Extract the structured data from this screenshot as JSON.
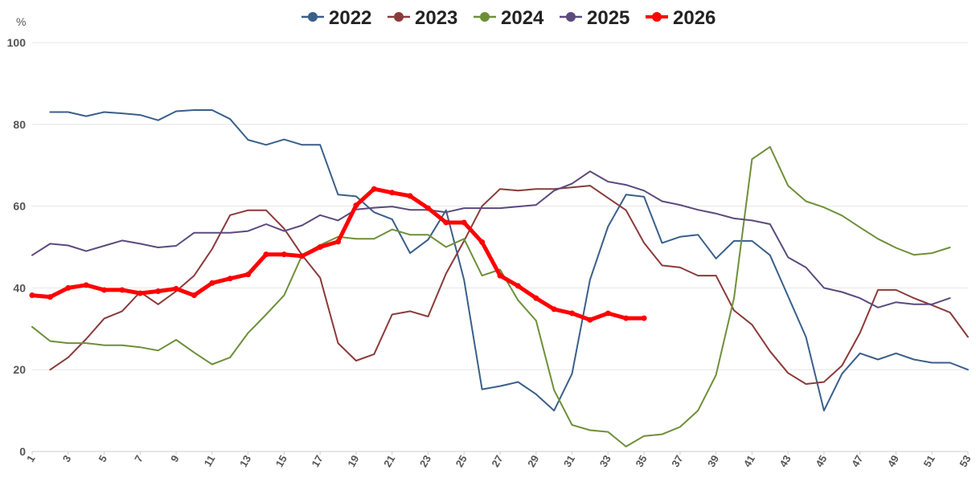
{
  "chart_data": {
    "type": "line",
    "y_unit": "%",
    "ylim": [
      0,
      100
    ],
    "y_ticks": [
      0,
      20,
      40,
      60,
      80,
      100
    ],
    "xlim": [
      1,
      53
    ],
    "x_ticks": [
      1,
      3,
      5,
      7,
      9,
      11,
      13,
      15,
      17,
      19,
      21,
      23,
      25,
      27,
      29,
      31,
      33,
      35,
      37,
      39,
      41,
      43,
      45,
      47,
      49,
      51,
      53
    ],
    "grid": "horizontal",
    "legend_position": "top-center",
    "series": [
      {
        "name": "2022",
        "color": "#3a5f8a",
        "x": [
          2,
          3,
          4,
          5,
          6,
          7,
          8,
          9,
          10,
          11,
          12,
          13,
          14,
          15,
          16,
          17,
          18,
          19,
          20,
          21,
          22,
          23,
          24,
          25,
          26,
          27,
          28,
          29,
          30,
          31,
          32,
          33,
          34,
          35,
          36,
          37,
          38,
          39,
          40,
          41,
          42,
          43,
          44,
          45,
          46,
          47,
          48,
          49,
          50,
          51,
          52,
          53
        ],
        "values": [
          83,
          83,
          82,
          83,
          82.7,
          82.3,
          81,
          83.2,
          83.5,
          83.5,
          81.3,
          76.2,
          75,
          76.3,
          75,
          75,
          62.8,
          62.4,
          58.5,
          56.8,
          48.5,
          51.8,
          59,
          42,
          15.2,
          16,
          17,
          14,
          10,
          19,
          42,
          55,
          62.8,
          62.3,
          51,
          52.5,
          53,
          47.2,
          51.5,
          51.5,
          48,
          38,
          28,
          10,
          19,
          24,
          22.5,
          24,
          22.5,
          21.7,
          21.7,
          20
        ]
      },
      {
        "name": "2023",
        "color": "#8b3a3a",
        "x": [
          2,
          3,
          4,
          5,
          6,
          7,
          8,
          9,
          10,
          11,
          12,
          13,
          14,
          15,
          16,
          17,
          18,
          19,
          20,
          21,
          22,
          23,
          24,
          25,
          26,
          27,
          28,
          29,
          30,
          31,
          32,
          33,
          34,
          35,
          36,
          37,
          38,
          39,
          40,
          41,
          42,
          43,
          44,
          45,
          46,
          47,
          48,
          49,
          50,
          51,
          52,
          53
        ],
        "values": [
          20,
          23,
          27.5,
          32.5,
          34.3,
          39,
          36,
          39.2,
          43,
          49.5,
          57.8,
          59,
          59,
          54.5,
          48,
          42.5,
          26.5,
          22.2,
          23.8,
          33.5,
          34.3,
          33,
          43.5,
          51.5,
          60,
          64.2,
          63.8,
          64.2,
          64.2,
          64.6,
          65,
          62,
          59,
          51,
          45.5,
          45,
          43,
          43,
          34.5,
          31,
          24.5,
          19.2,
          16.5,
          17,
          21,
          29,
          39.5,
          39.5,
          37.5,
          35.8,
          34,
          28
        ]
      },
      {
        "name": "2024",
        "color": "#6e8f3a",
        "x": [
          1,
          2,
          3,
          4,
          5,
          6,
          7,
          8,
          9,
          10,
          11,
          12,
          13,
          14,
          15,
          16,
          17,
          18,
          19,
          20,
          21,
          22,
          23,
          24,
          25,
          26,
          27,
          28,
          29,
          30,
          31,
          32,
          33,
          34,
          35,
          36,
          37,
          38,
          39,
          40,
          41,
          42,
          43,
          44,
          45,
          46,
          47,
          48,
          49,
          50,
          51,
          52
        ],
        "values": [
          30.5,
          27,
          26.5,
          26.5,
          26,
          26,
          25.5,
          24.7,
          27.3,
          24.2,
          21.3,
          23,
          29,
          33.5,
          38.2,
          48,
          50.5,
          52.5,
          52,
          52,
          54.3,
          53,
          53,
          50,
          52,
          43,
          44.5,
          37,
          32,
          15,
          6.5,
          5.2,
          4.8,
          1.2,
          3.8,
          4.2,
          6,
          10,
          18.7,
          37.5,
          71.5,
          74.5,
          65,
          61.2,
          59.7,
          57.7,
          54.8,
          52,
          49.8,
          48.1,
          48.5,
          49.9
        ]
      },
      {
        "name": "2025",
        "color": "#5b4a7d",
        "x": [
          1,
          2,
          3,
          4,
          5,
          6,
          7,
          8,
          9,
          10,
          11,
          12,
          13,
          14,
          15,
          16,
          17,
          18,
          19,
          20,
          21,
          22,
          23,
          24,
          25,
          26,
          27,
          28,
          29,
          30,
          31,
          32,
          33,
          34,
          35,
          36,
          37,
          38,
          39,
          40,
          41,
          42,
          43,
          44,
          45,
          46,
          47,
          48,
          49,
          50,
          51,
          52
        ],
        "values": [
          48,
          50.8,
          50.4,
          49,
          50.3,
          51.6,
          50.8,
          49.9,
          50.3,
          53.5,
          53.5,
          53.5,
          53.9,
          55.6,
          53.9,
          55.3,
          57.8,
          56.5,
          59.2,
          59.6,
          59.9,
          59.1,
          59.1,
          58.5,
          59.5,
          59.5,
          59.5,
          59.9,
          60.3,
          63.8,
          65.5,
          68.5,
          66,
          65.2,
          63.8,
          61.2,
          60.3,
          59.1,
          58.2,
          57,
          56.5,
          55.6,
          47.5,
          45,
          40,
          39,
          37.5,
          35.2,
          36.5,
          36,
          36,
          37.5
        ]
      },
      {
        "name": "2026",
        "color": "#ff0000",
        "x": [
          1,
          2,
          3,
          4,
          5,
          6,
          7,
          8,
          9,
          10,
          11,
          12,
          13,
          14,
          15,
          16,
          17,
          18,
          19,
          20,
          21,
          22,
          23,
          24,
          25,
          26,
          27,
          28,
          29,
          30,
          31,
          32,
          33,
          34,
          35
        ],
        "values": [
          38.2,
          37.8,
          40,
          40.7,
          39.5,
          39.5,
          38.7,
          39.2,
          39.8,
          38.2,
          41.2,
          42.3,
          43.3,
          48.2,
          48.2,
          47.8,
          50,
          51.3,
          60.2,
          64.2,
          63.3,
          62.5,
          59.5,
          56,
          56,
          51.2,
          43,
          40.5,
          37.5,
          34.8,
          33.8,
          32.2,
          33.8,
          32.6,
          32.6
        ]
      }
    ]
  }
}
